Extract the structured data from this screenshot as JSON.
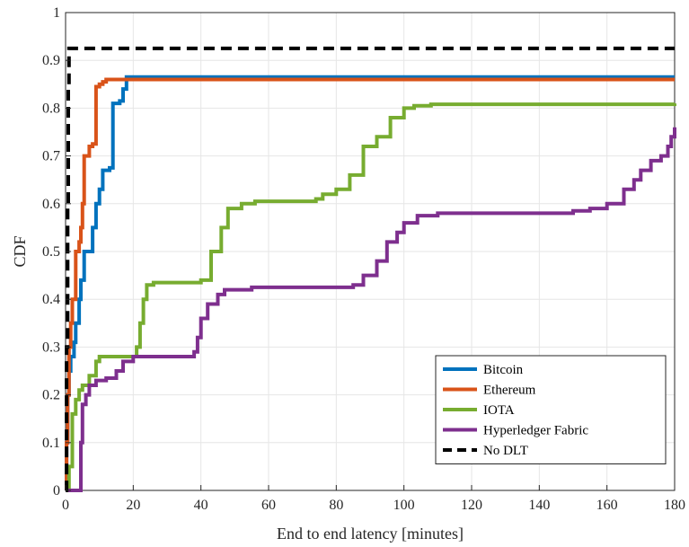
{
  "chart_data": {
    "type": "line",
    "title": "",
    "xlabel": "End to end latency [minutes]",
    "ylabel": "CDF",
    "xlim": [
      0,
      180
    ],
    "ylim": [
      0,
      1
    ],
    "xticks": [
      "0",
      "20",
      "40",
      "60",
      "80",
      "100",
      "120",
      "140",
      "160",
      "180"
    ],
    "yticks": [
      "0",
      "0.1",
      "0.2",
      "0.3",
      "0.4",
      "0.5",
      "0.6",
      "0.7",
      "0.8",
      "0.9",
      "1"
    ],
    "grid": true,
    "legend_position": "bottom-right",
    "series": [
      {
        "name": "Bitcoin",
        "color": "#0072BD",
        "dash": "solid",
        "points": [
          [
            0,
            0
          ],
          [
            0.3,
            0.1
          ],
          [
            0.6,
            0.2
          ],
          [
            1,
            0.25
          ],
          [
            1.5,
            0.28
          ],
          [
            2.5,
            0.31
          ],
          [
            3,
            0.35
          ],
          [
            4,
            0.4
          ],
          [
            4.5,
            0.44
          ],
          [
            5.5,
            0.5
          ],
          [
            7,
            0.5
          ],
          [
            8,
            0.55
          ],
          [
            9,
            0.6
          ],
          [
            10,
            0.63
          ],
          [
            11,
            0.67
          ],
          [
            13,
            0.675
          ],
          [
            14,
            0.81
          ],
          [
            16,
            0.815
          ],
          [
            17,
            0.84
          ],
          [
            18,
            0.865
          ],
          [
            180,
            0.865
          ]
        ]
      },
      {
        "name": "Ethereum",
        "color": "#D95319",
        "dash": "solid",
        "points": [
          [
            0,
            0
          ],
          [
            0.3,
            0.1
          ],
          [
            0.6,
            0.2
          ],
          [
            1,
            0.3
          ],
          [
            1.5,
            0.35
          ],
          [
            2,
            0.4
          ],
          [
            3,
            0.5
          ],
          [
            4,
            0.52
          ],
          [
            4.5,
            0.55
          ],
          [
            5,
            0.6
          ],
          [
            5.5,
            0.7
          ],
          [
            6,
            0.7
          ],
          [
            7,
            0.72
          ],
          [
            8,
            0.725
          ],
          [
            9,
            0.845
          ],
          [
            10,
            0.85
          ],
          [
            11,
            0.855
          ],
          [
            12,
            0.86
          ],
          [
            180,
            0.86
          ]
        ]
      },
      {
        "name": "IOTA",
        "color": "#77AC30",
        "dash": "solid",
        "points": [
          [
            0,
            0
          ],
          [
            1,
            0.05
          ],
          [
            2,
            0.16
          ],
          [
            3,
            0.19
          ],
          [
            4,
            0.21
          ],
          [
            5,
            0.22
          ],
          [
            7,
            0.24
          ],
          [
            9,
            0.27
          ],
          [
            10,
            0.28
          ],
          [
            20,
            0.28
          ],
          [
            21,
            0.3
          ],
          [
            22,
            0.35
          ],
          [
            23,
            0.4
          ],
          [
            24,
            0.43
          ],
          [
            26,
            0.435
          ],
          [
            37,
            0.435
          ],
          [
            40,
            0.44
          ],
          [
            43,
            0.5
          ],
          [
            46,
            0.55
          ],
          [
            48,
            0.59
          ],
          [
            52,
            0.6
          ],
          [
            56,
            0.605
          ],
          [
            65,
            0.605
          ],
          [
            74,
            0.61
          ],
          [
            76,
            0.62
          ],
          [
            80,
            0.63
          ],
          [
            84,
            0.66
          ],
          [
            88,
            0.72
          ],
          [
            92,
            0.74
          ],
          [
            96,
            0.78
          ],
          [
            100,
            0.8
          ],
          [
            103,
            0.805
          ],
          [
            108,
            0.808
          ],
          [
            180,
            0.81
          ]
        ]
      },
      {
        "name": "Hyperledger Fabric",
        "color": "#7E2F8E",
        "dash": "solid",
        "points": [
          [
            0,
            0
          ],
          [
            4,
            0
          ],
          [
            4.5,
            0.1
          ],
          [
            5,
            0.18
          ],
          [
            6,
            0.2
          ],
          [
            7,
            0.22
          ],
          [
            9,
            0.23
          ],
          [
            12,
            0.235
          ],
          [
            15,
            0.25
          ],
          [
            17,
            0.27
          ],
          [
            20,
            0.28
          ],
          [
            37,
            0.28
          ],
          [
            38,
            0.29
          ],
          [
            39,
            0.32
          ],
          [
            40,
            0.36
          ],
          [
            42,
            0.39
          ],
          [
            45,
            0.41
          ],
          [
            47,
            0.42
          ],
          [
            55,
            0.425
          ],
          [
            65,
            0.425
          ],
          [
            80,
            0.425
          ],
          [
            85,
            0.43
          ],
          [
            88,
            0.45
          ],
          [
            92,
            0.48
          ],
          [
            95,
            0.52
          ],
          [
            98,
            0.54
          ],
          [
            100,
            0.56
          ],
          [
            104,
            0.575
          ],
          [
            110,
            0.58
          ],
          [
            120,
            0.58
          ],
          [
            140,
            0.58
          ],
          [
            150,
            0.585
          ],
          [
            155,
            0.59
          ],
          [
            160,
            0.6
          ],
          [
            165,
            0.63
          ],
          [
            168,
            0.65
          ],
          [
            170,
            0.67
          ],
          [
            173,
            0.69
          ],
          [
            176,
            0.7
          ],
          [
            178,
            0.72
          ],
          [
            179,
            0.74
          ],
          [
            180,
            0.76
          ]
        ]
      },
      {
        "name": "No DLT",
        "color": "#000000",
        "dash": "dashed",
        "points": [
          [
            0,
            0
          ],
          [
            0.3,
            0.3
          ],
          [
            0.6,
            0.6
          ],
          [
            0.8,
            0.85
          ],
          [
            1,
            0.925
          ],
          [
            180,
            0.925
          ]
        ]
      }
    ]
  }
}
